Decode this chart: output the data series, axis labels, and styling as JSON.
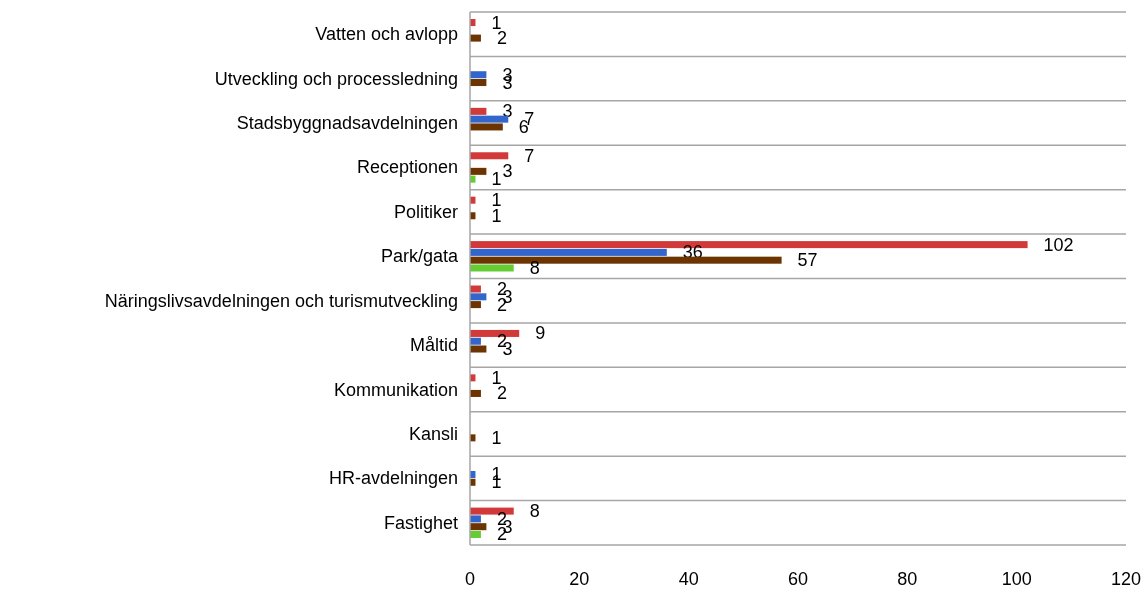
{
  "chart_data": {
    "type": "bar",
    "orientation": "horizontal",
    "categories": [
      "Vatten och avlopp",
      "Utveckling och processledning",
      "Stadsbyggnadsavdelningen",
      "Receptionen",
      "Politiker",
      "Park/gata",
      "Näringslivsavdelningen och turismutveckling",
      "Måltid",
      "Kommunikation",
      "Kansli",
      "HR-avdelningen",
      "Fastighet"
    ],
    "series": [
      {
        "color": "#d23a3a",
        "values": [
          1,
          null,
          3,
          7,
          1,
          102,
          2,
          9,
          1,
          null,
          null,
          8
        ]
      },
      {
        "color": "#3366cc",
        "values": [
          null,
          3,
          7,
          null,
          null,
          36,
          3,
          2,
          null,
          null,
          1,
          2
        ]
      },
      {
        "color": "#6b3400",
        "values": [
          2,
          3,
          6,
          3,
          1,
          57,
          2,
          3,
          2,
          1,
          1,
          3
        ]
      },
      {
        "color": "#66cc33",
        "values": [
          null,
          null,
          null,
          1,
          null,
          8,
          null,
          null,
          null,
          null,
          null,
          2
        ]
      }
    ],
    "xlim": [
      0,
      120
    ],
    "xticks": [
      0,
      20,
      40,
      60,
      80,
      100,
      120
    ],
    "grid": "y",
    "data_labels": true
  }
}
